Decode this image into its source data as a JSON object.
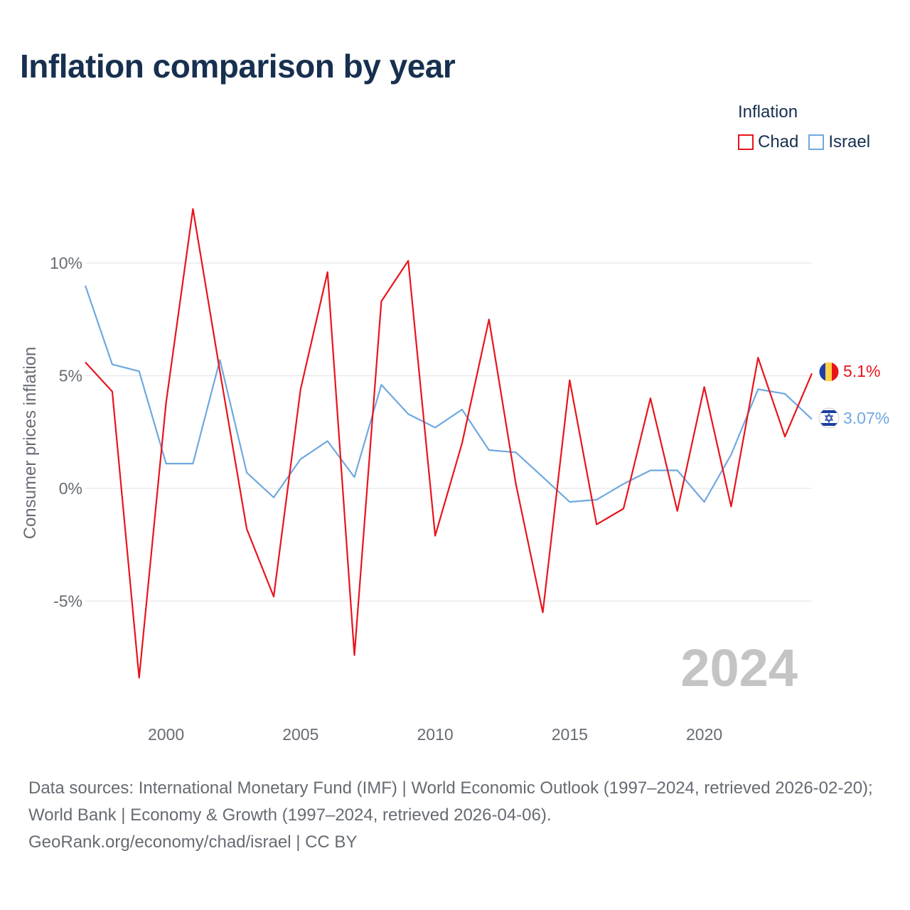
{
  "title": "Inflation comparison by year",
  "legend": {
    "title": "Inflation",
    "items": [
      {
        "name": "Chad",
        "color": "#e8141c"
      },
      {
        "name": "Israel",
        "color": "#6fa8e0"
      }
    ]
  },
  "chart_data": {
    "type": "line",
    "title": "Inflation comparison by year",
    "xlabel": "",
    "ylabel": "Consumer prices inflation",
    "xlim": [
      1997,
      2024
    ],
    "ylim": [
      -10,
      13
    ],
    "yticks": [
      -5,
      0,
      5,
      10
    ],
    "ytick_labels": [
      "-5%",
      "0%",
      "5%",
      "10%"
    ],
    "xticks": [
      2000,
      2005,
      2010,
      2015,
      2020
    ],
    "xtick_labels": [
      "2000",
      "2005",
      "2010",
      "2015",
      "2020"
    ],
    "grid": true,
    "legend_position": "top-right",
    "year_label": "2024",
    "x": [
      1997,
      1998,
      1999,
      2000,
      2001,
      2002,
      2003,
      2004,
      2005,
      2006,
      2007,
      2008,
      2009,
      2010,
      2011,
      2012,
      2013,
      2014,
      2015,
      2016,
      2017,
      2018,
      2019,
      2020,
      2021,
      2022,
      2023,
      2024
    ],
    "series": [
      {
        "name": "Chad",
        "color": "#e8141c",
        "end_label": "5.1%",
        "values": [
          5.6,
          4.3,
          -8.4,
          3.8,
          12.4,
          5.2,
          -1.8,
          -4.8,
          4.4,
          9.6,
          -7.4,
          8.3,
          10.1,
          -2.1,
          2.0,
          7.5,
          0.2,
          -5.5,
          4.8,
          -1.6,
          -0.9,
          4.0,
          -1.0,
          4.5,
          -0.8,
          5.8,
          2.3,
          5.1
        ]
      },
      {
        "name": "Israel",
        "color": "#6fa8e0",
        "end_label": "3.07%",
        "values": [
          9.0,
          5.5,
          5.2,
          1.1,
          1.1,
          5.7,
          0.7,
          -0.4,
          1.3,
          2.1,
          0.5,
          4.6,
          3.3,
          2.7,
          3.5,
          1.7,
          1.6,
          0.5,
          -0.6,
          -0.5,
          0.2,
          0.8,
          0.8,
          -0.6,
          1.5,
          4.4,
          4.2,
          3.07
        ]
      }
    ]
  },
  "footer": {
    "line1": "Data sources: International Monetary Fund (IMF) | World Economic Outlook (1997–2024, retrieved 2026-02-20); World Bank | Economy & Growth (1997–2024, retrieved 2026-04-06).",
    "line2": "GeoRank.org/economy/chad/israel | CC BY"
  }
}
